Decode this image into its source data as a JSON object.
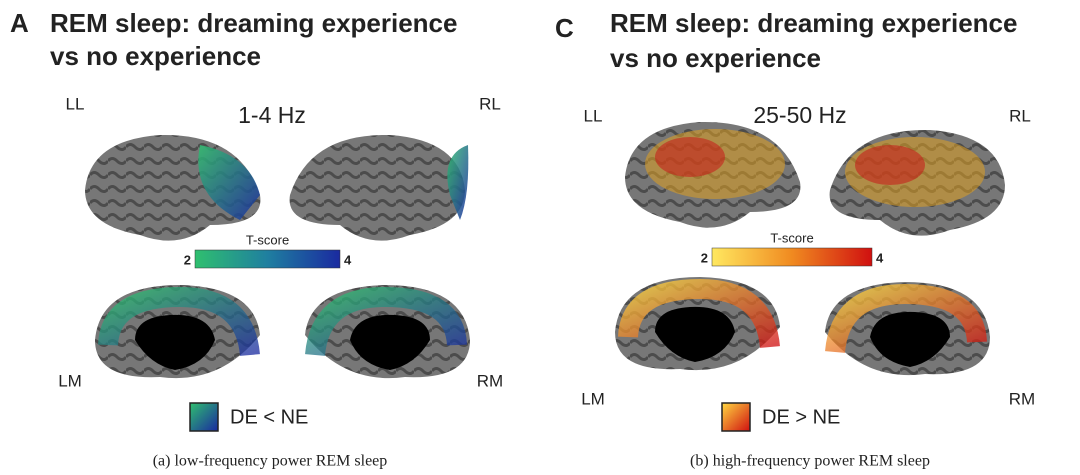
{
  "panels": [
    {
      "letter": "A",
      "title": [
        "REM sleep: dreaming experience",
        "vs no experience"
      ],
      "band": "1-4 Hz",
      "views": {
        "ll": "LL",
        "rl": "RL",
        "lm": "LM",
        "rm": "RM"
      },
      "colorbar": {
        "label": "T-score",
        "ticks": [
          2,
          4
        ]
      },
      "legend": "DE < NE",
      "caption": "(a) low-frequency power REM sleep"
    },
    {
      "letter": "C",
      "title": [
        "REM sleep: dreaming experience",
        "vs no experience"
      ],
      "band": "25-50 Hz",
      "views": {
        "ll": "LL",
        "rl": "RL",
        "lm": "LM",
        "rm": "RM"
      },
      "colorbar": {
        "label": "T-score",
        "ticks": [
          2,
          4
        ]
      },
      "legend": "DE > NE",
      "caption": "(b) high-frequency power REM sleep"
    }
  ]
}
